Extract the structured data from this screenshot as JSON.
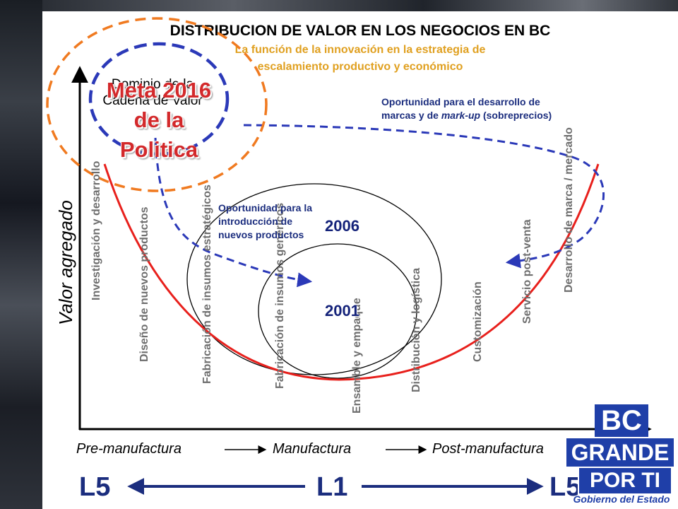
{
  "title": "DISTRIBUCION DE VALOR EN LOS NEGOCIOS EN BC",
  "subtitle_line1": "La función de la innovación en la estrategia de",
  "subtitle_line2": "escalamiento productivo y económico",
  "y_axis_label": "Valor agregado",
  "activities": [
    "Investigación y desarrollo",
    "Diseño de nuevos productos",
    "Fabricación de insumos estratégicos",
    "Fabricación de insumos genéricos",
    "Ensamble y empaque",
    "Distribución y logística",
    "Customización",
    "Servicio post-venta",
    "Desarrollo de marca / mercado"
  ],
  "phases": [
    "Pre-manufactura",
    "Manufactura",
    "Post-manufactura"
  ],
  "levels": {
    "left": "L5",
    "center": "L1",
    "right": "L5"
  },
  "years": {
    "inner": "2001",
    "outer": "2006"
  },
  "meta": {
    "line1": "Meta 2016",
    "line2": "de la",
    "line3": "Politica"
  },
  "dominio": {
    "line1": "Dominio de la",
    "line2": "Cadena de Valor"
  },
  "notes": {
    "new_products": [
      "Oportunidad para la",
      "introducción de",
      "nuevos productos"
    ],
    "brands_pre": "Oportunidad para el desarrollo de",
    "brands_line2_a": "marcas y de ",
    "brands_line2_em": "mark-up",
    "brands_line2_b": " (sobreprecios)"
  },
  "logo": {
    "line1": "BC",
    "line2": "GRANDE",
    "line3": "POR TI",
    "line4": "Gobierno del Estado"
  },
  "colors": {
    "curve": "#e8201c",
    "dashed_blue": "#2b39b8",
    "dashed_orange": "#f07a20",
    "subtitle": "#e0a020",
    "logo_blue": "#1f3fa8"
  }
}
